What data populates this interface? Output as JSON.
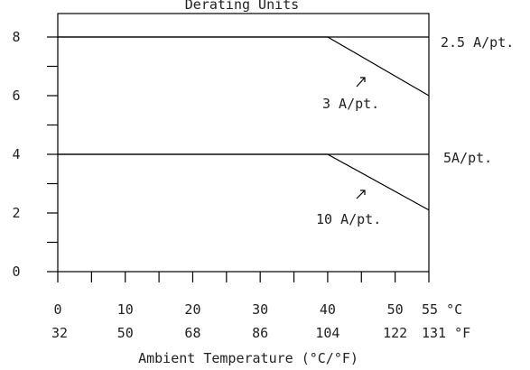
{
  "chart_data": {
    "type": "line",
    "title": "Derating Units",
    "xlabel": "Ambient Temperature (°C/°F)",
    "ylabel": "",
    "xlim": [
      0,
      55
    ],
    "ylim": [
      0,
      8.8
    ],
    "x_ticks_c": [
      "0",
      "10",
      "20",
      "30",
      "40",
      "50",
      "55 °C"
    ],
    "x_ticks_c_values": [
      0,
      10,
      20,
      30,
      40,
      50,
      55
    ],
    "x_ticks_f": [
      "32",
      "50",
      "68",
      "86",
      "104",
      "122",
      "131 °F"
    ],
    "y_ticks": [
      "0",
      "2",
      "4",
      "6",
      "8"
    ],
    "y_ticks_values": [
      0,
      2,
      4,
      6,
      8
    ],
    "y_minor_values": [
      1,
      3,
      5,
      7
    ],
    "x_minor_values": [
      5,
      15,
      25,
      35,
      45
    ],
    "grid": false,
    "series": [
      {
        "name": "2.5 A/pt.",
        "points": [
          [
            0,
            8
          ],
          [
            55,
            8
          ]
        ]
      },
      {
        "name": "3 A/pt.",
        "points": [
          [
            0,
            8
          ],
          [
            40,
            8
          ],
          [
            55,
            6
          ]
        ]
      },
      {
        "name": "5A/pt.",
        "points": [
          [
            0,
            4
          ],
          [
            55,
            4
          ]
        ]
      },
      {
        "name": "10 A/pt.",
        "points": [
          [
            0,
            4
          ],
          [
            40,
            4
          ],
          [
            55,
            2.1
          ]
        ]
      }
    ],
    "annotations": {
      "a25": "2.5 A/pt.",
      "a3": "3 A/pt.",
      "a5": "5A/pt.",
      "a10": "10 A/pt."
    }
  }
}
